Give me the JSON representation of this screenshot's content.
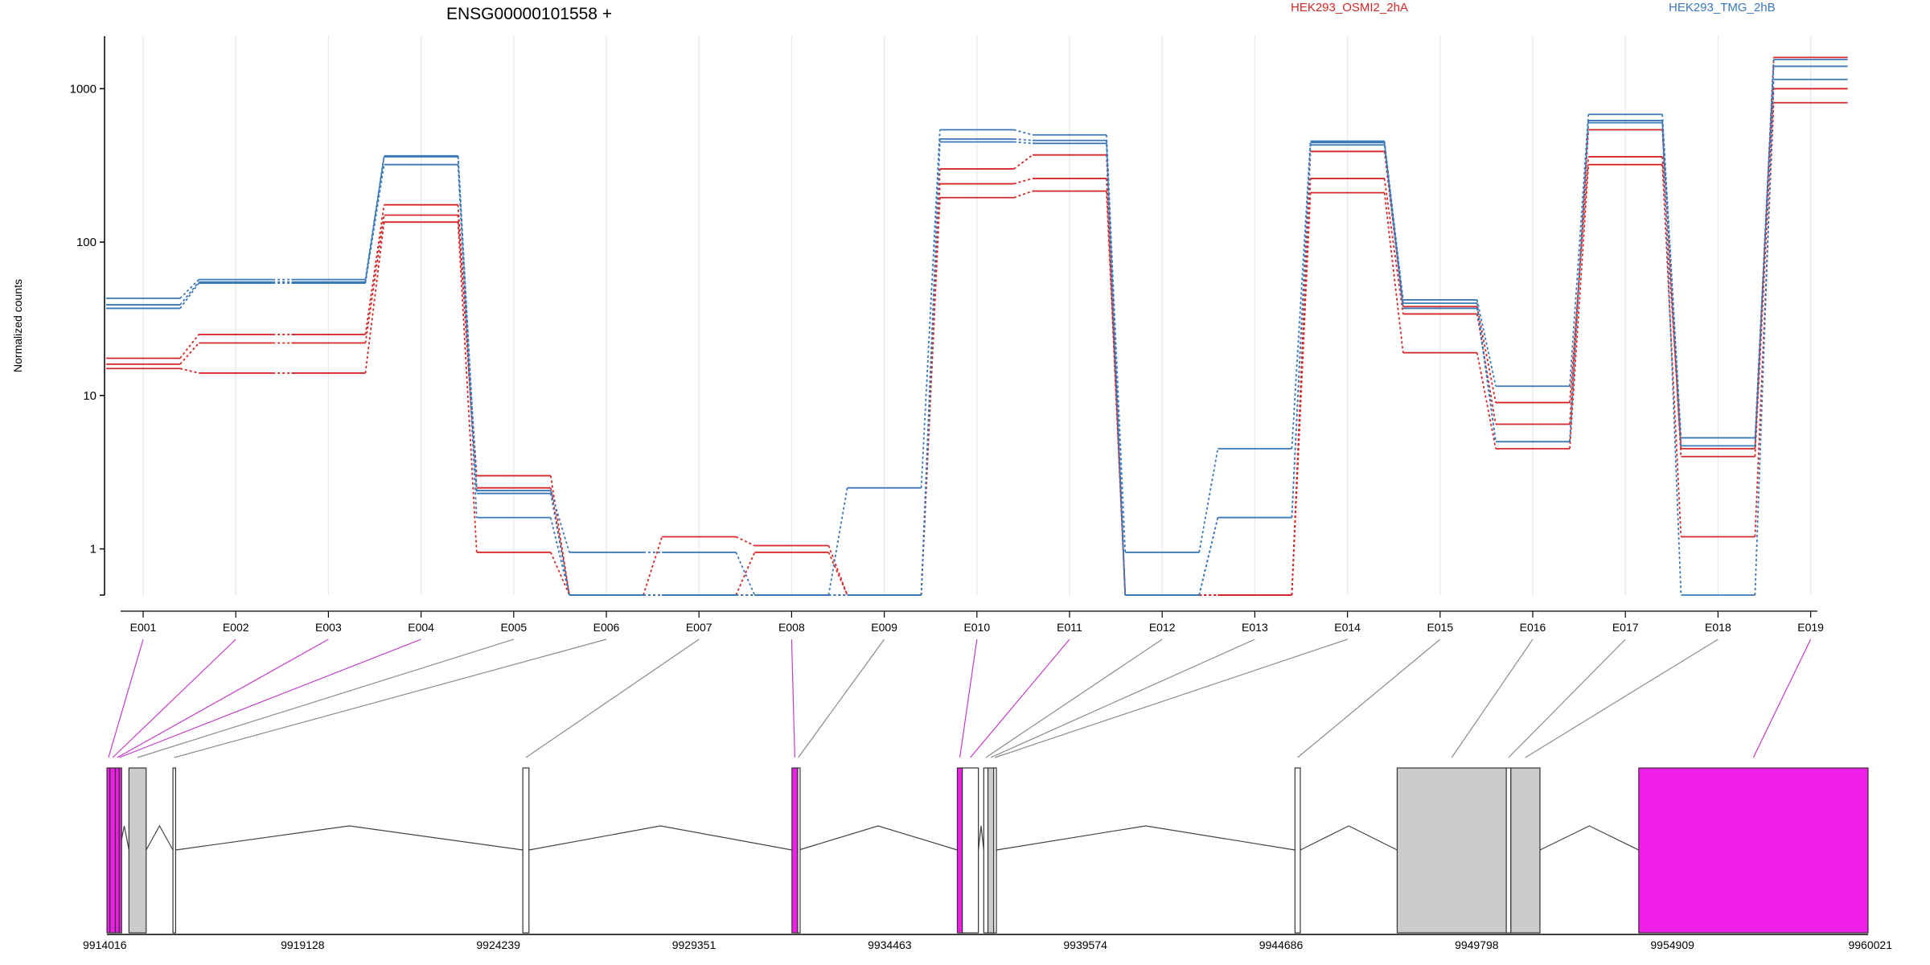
{
  "chart_data": {
    "type": "line",
    "title": "ENSG00000101558 +",
    "ylabel": "Normalized counts",
    "xlabel": "",
    "y_scale": "log",
    "ylim": [
      0.5,
      2200
    ],
    "y_ticks": [
      1,
      10,
      100,
      1000
    ],
    "y_tick_labels": [
      "1",
      "10",
      "100",
      "1000"
    ],
    "grid": "vertical-lines-at-exons",
    "legend_position": "top",
    "categories": [
      "E001",
      "E002",
      "E003",
      "E004",
      "E005",
      "E006",
      "E007",
      "E008",
      "E009",
      "E010",
      "E011",
      "E012",
      "E013",
      "E014",
      "E015",
      "E016",
      "E017",
      "E018",
      "E019"
    ],
    "series": [
      {
        "name": "HEK293_OSMI2_2hA",
        "color": "#d62728",
        "values": [
          17.5,
          25,
          25,
          175,
          3.0,
          0.5,
          1.2,
          1.05,
          0.5,
          300,
          370,
          0.5,
          0.5,
          390,
          38,
          9.0,
          360,
          4.5,
          1600
        ]
      },
      {
        "name": "HEK293_OSMI2_2hA",
        "color": "#d62728",
        "values": [
          16,
          22,
          22,
          150,
          2.5,
          0.5,
          0.5,
          0.95,
          0.5,
          240,
          260,
          0.5,
          0.5,
          260,
          34,
          6.5,
          540,
          4.0,
          1000
        ]
      },
      {
        "name": "HEK293_OSMI2_2hA",
        "color": "#d62728",
        "values": [
          15,
          14,
          14,
          135,
          0.95,
          0.5,
          0.5,
          0.5,
          0.5,
          195,
          215,
          0.5,
          0.5,
          210,
          19,
          4.5,
          320,
          1.2,
          810
        ]
      },
      {
        "name": "HEK293_TMG_2hB",
        "color": "#3a78b8",
        "values": [
          43,
          57,
          57,
          365,
          2.4,
          0.95,
          0.95,
          0.5,
          2.5,
          540,
          500,
          0.95,
          4.5,
          455,
          42,
          11.5,
          680,
          5.3,
          1550
        ]
      },
      {
        "name": "HEK293_TMG_2hB",
        "color": "#3a78b8",
        "values": [
          39,
          55,
          55,
          360,
          2.3,
          0.5,
          0.5,
          0.5,
          0.5,
          470,
          460,
          0.5,
          1.6,
          445,
          40,
          5.0,
          620,
          4.7,
          1400
        ]
      },
      {
        "name": "HEK293_TMG_2hB",
        "color": "#3a78b8",
        "values": [
          37,
          54,
          54,
          320,
          1.6,
          0.5,
          0.5,
          0.5,
          0.5,
          450,
          440,
          0.5,
          1.6,
          430,
          37,
          5.0,
          600,
          0.5,
          1150
        ]
      }
    ],
    "legend": [
      {
        "label": "HEK293_OSMI2_2hA",
        "color": "#d62728"
      },
      {
        "label": "HEK293_TMG_2hB",
        "color": "#3a78b8"
      }
    ],
    "gene_model": {
      "coord_range": [
        9914016,
        9960021
      ],
      "coord_ticks": [
        9914016,
        9919128,
        9924239,
        9929351,
        9934463,
        9939574,
        9944686,
        9949798,
        9954909,
        9960021
      ],
      "coord_tick_labels": [
        "9914016",
        "9919128",
        "9924239",
        "9929351",
        "9934463",
        "9939574",
        "9944686",
        "9949798",
        "9954909",
        "9960021"
      ],
      "significant_color": "#ee1ee6",
      "constitutive_color": "#cccccc",
      "exons": [
        {
          "id": "E001",
          "start": 9914016,
          "end": 9914096,
          "fill": "magenta"
        },
        {
          "id": "E002",
          "start": 9914096,
          "end": 9914236,
          "fill": "magenta"
        },
        {
          "id": "E003",
          "start": 9914236,
          "end": 9914336,
          "fill": "magenta"
        },
        {
          "id": "E004",
          "start": 9914336,
          "end": 9914346,
          "fill": "magenta"
        },
        {
          "id": "E005",
          "start": 9914590,
          "end": 9915040,
          "fill": "grey"
        },
        {
          "id": "E006",
          "start": 9915740,
          "end": 9915810,
          "fill": "white"
        },
        {
          "id": "E007",
          "start": 9924880,
          "end": 9925040,
          "fill": "white"
        },
        {
          "id": "E008",
          "start": 9931910,
          "end": 9932060,
          "fill": "magenta"
        },
        {
          "id": "E009",
          "start": 9932060,
          "end": 9932090,
          "fill": "white"
        },
        {
          "id": "E010",
          "start": 9936230,
          "end": 9936360,
          "fill": "magenta"
        },
        {
          "id": "E011",
          "start": 9936360,
          "end": 9936780,
          "fill": "white"
        },
        {
          "id": "E012",
          "start": 9936920,
          "end": 9937030,
          "fill": "white"
        },
        {
          "id": "E013",
          "start": 9937030,
          "end": 9937180,
          "fill": "grey"
        },
        {
          "id": "E014",
          "start": 9937180,
          "end": 9937250,
          "fill": "white"
        },
        {
          "id": "E015",
          "start": 9945050,
          "end": 9945190,
          "fill": "white"
        },
        {
          "id": "E016",
          "start": 9947720,
          "end": 9950570,
          "fill": "grey"
        },
        {
          "id": "E017",
          "start": 9950570,
          "end": 9950690,
          "fill": "white"
        },
        {
          "id": "E018",
          "start": 9950690,
          "end": 9951450,
          "fill": "grey"
        },
        {
          "id": "E019",
          "start": 9954030,
          "end": 9960021,
          "fill": "magenta"
        }
      ],
      "exon_link_colors": [
        "magenta",
        "magenta",
        "magenta",
        "magenta",
        "grey",
        "grey",
        "grey",
        "magenta",
        "grey",
        "magenta",
        "magenta",
        "grey",
        "grey",
        "grey",
        "grey",
        "grey",
        "grey",
        "grey",
        "magenta"
      ]
    }
  }
}
